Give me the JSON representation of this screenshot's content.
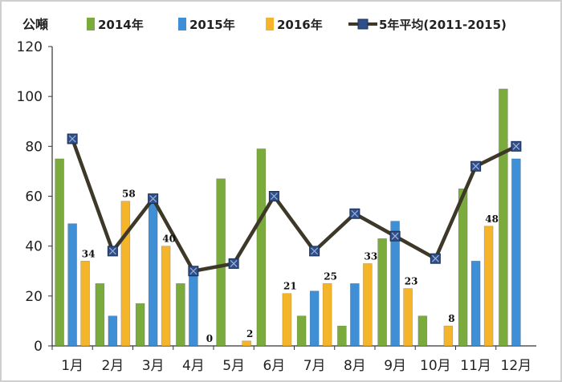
{
  "chart_data": {
    "type": "bar",
    "unit_label": "公噸",
    "categories": [
      "1月",
      "2月",
      "3月",
      "4月",
      "5月",
      "6月",
      "7月",
      "8月",
      "9月",
      "10月",
      "11月",
      "12月"
    ],
    "ylim": [
      0,
      120
    ],
    "yticks": [
      "0",
      "20",
      "40",
      "60",
      "80",
      "100",
      "120"
    ],
    "series": [
      {
        "name": "2014年",
        "kind": "bar",
        "color": "#7aab3c",
        "values": [
          75,
          25,
          17,
          25,
          67,
          79,
          12,
          8,
          43,
          12,
          63,
          103
        ]
      },
      {
        "name": "2015年",
        "kind": "bar",
        "color": "#3f8fd6",
        "values": [
          49,
          12,
          59,
          31,
          0,
          0,
          22,
          25,
          50,
          0,
          34,
          75
        ]
      },
      {
        "name": "2016年",
        "kind": "bar",
        "color": "#f5b52a",
        "values": [
          34,
          58,
          40,
          0,
          2,
          21,
          25,
          33,
          23,
          8,
          48,
          null
        ],
        "data_labels": [
          "34",
          "58",
          "40",
          "0",
          "2",
          "21",
          "25",
          "33",
          "23",
          "8",
          "48",
          ""
        ]
      },
      {
        "name": "5年平均(2011-2015)",
        "kind": "line",
        "color": "#3d3828",
        "marker_color": "#2f4f8a",
        "values": [
          83,
          38,
          59,
          30,
          33,
          60,
          38,
          53,
          44,
          35,
          72,
          80
        ]
      }
    ],
    "grid": false,
    "legend_position": "top"
  }
}
